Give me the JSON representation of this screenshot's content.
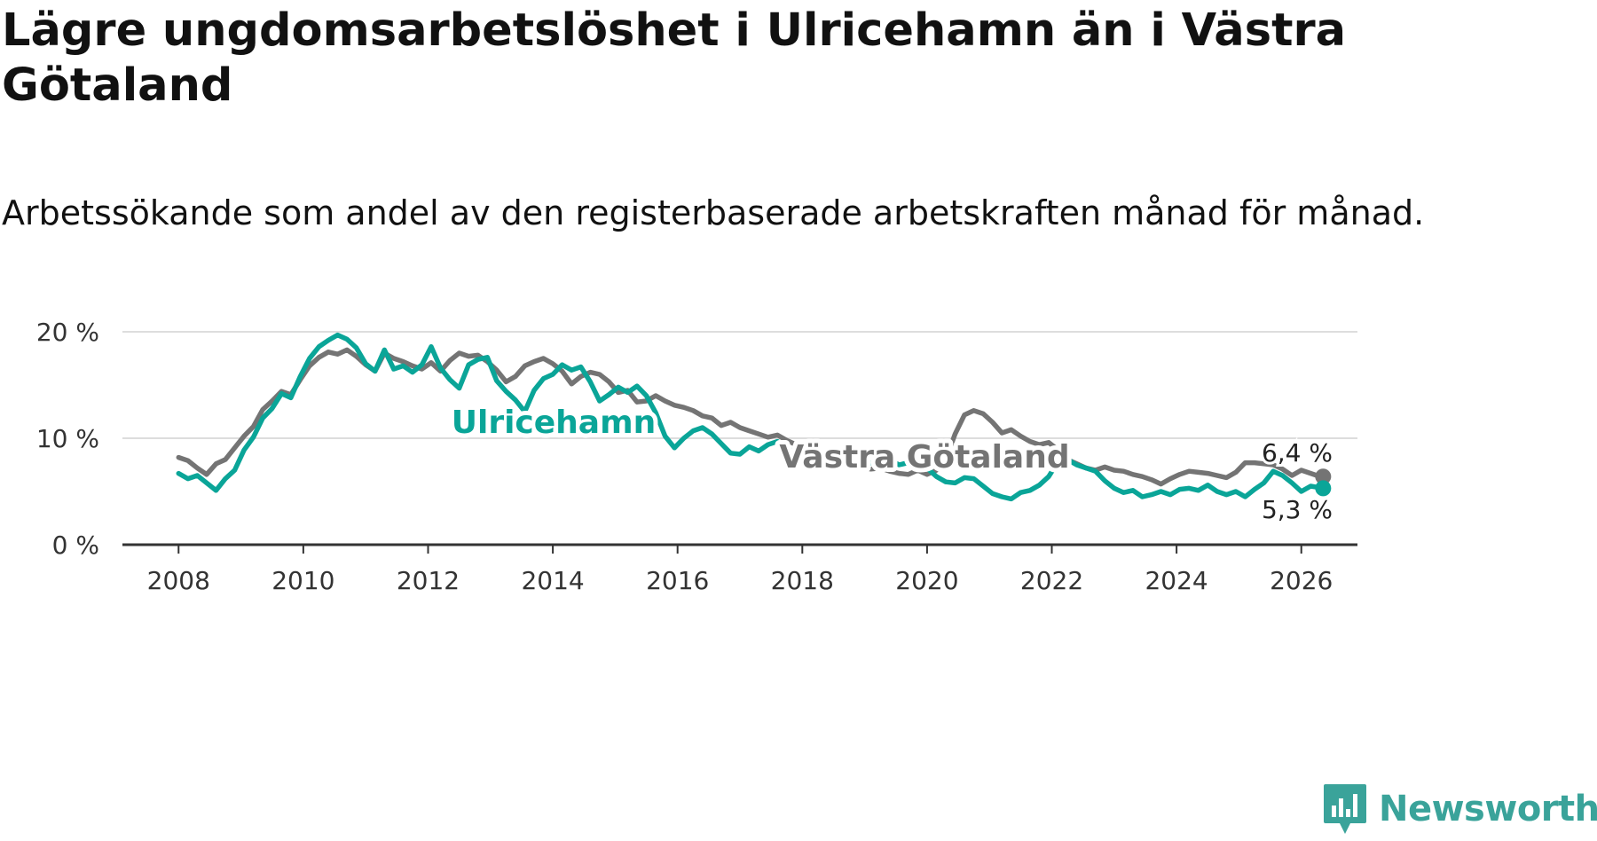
{
  "title": "Lägre ungdomsarbetslöshet i Ulricehamn än i Västra Götaland",
  "subtitle": "Arbetssökande som andel av den registerbaserade arbetskraften månad för månad.",
  "brand": {
    "name": "Newsworthy",
    "color": "#3aa39a"
  },
  "chart_data": {
    "type": "line",
    "title": "Lägre ungdomsarbetslöshet i Ulricehamn än i Västra Götaland",
    "xlabel": "",
    "ylabel": "",
    "xlim": [
      2007.1,
      2026.9
    ],
    "ylim": [
      0,
      20
    ],
    "grid": true,
    "x_ticks": [
      2008,
      2010,
      2012,
      2014,
      2016,
      2018,
      2020,
      2022,
      2024,
      2026
    ],
    "x_tick_labels": [
      "2008",
      "2010",
      "2012",
      "2014",
      "2016",
      "2018",
      "2020",
      "2022",
      "2024",
      "2026"
    ],
    "y_ticks": [
      0,
      10,
      20
    ],
    "y_tick_labels": [
      "0 %",
      "10 %",
      "20 %"
    ],
    "series": [
      {
        "name": "Västra Götaland",
        "color": "#747474",
        "end_label": "6,4 %",
        "points": [
          [
            2008.0,
            8.2
          ],
          [
            2008.15,
            7.9
          ],
          [
            2008.3,
            7.2
          ],
          [
            2008.45,
            6.6
          ],
          [
            2008.6,
            7.6
          ],
          [
            2008.75,
            8.0
          ],
          [
            2008.9,
            9.1
          ],
          [
            2009.05,
            10.2
          ],
          [
            2009.2,
            11.1
          ],
          [
            2009.35,
            12.7
          ],
          [
            2009.5,
            13.5
          ],
          [
            2009.65,
            14.4
          ],
          [
            2009.8,
            14.1
          ],
          [
            2009.95,
            15.5
          ],
          [
            2010.1,
            16.8
          ],
          [
            2010.25,
            17.6
          ],
          [
            2010.4,
            18.1
          ],
          [
            2010.55,
            17.9
          ],
          [
            2010.7,
            18.3
          ],
          [
            2010.85,
            17.7
          ],
          [
            2011.0,
            16.9
          ],
          [
            2011.15,
            16.3
          ],
          [
            2011.3,
            18.0
          ],
          [
            2011.45,
            17.5
          ],
          [
            2011.6,
            17.2
          ],
          [
            2011.75,
            16.8
          ],
          [
            2011.9,
            16.5
          ],
          [
            2012.05,
            17.1
          ],
          [
            2012.2,
            16.3
          ],
          [
            2012.35,
            17.3
          ],
          [
            2012.5,
            18.0
          ],
          [
            2012.65,
            17.7
          ],
          [
            2012.8,
            17.8
          ],
          [
            2012.95,
            17.2
          ],
          [
            2013.1,
            16.4
          ],
          [
            2013.25,
            15.3
          ],
          [
            2013.4,
            15.8
          ],
          [
            2013.55,
            16.8
          ],
          [
            2013.7,
            17.2
          ],
          [
            2013.85,
            17.5
          ],
          [
            2014.0,
            17.0
          ],
          [
            2014.15,
            16.3
          ],
          [
            2014.3,
            15.1
          ],
          [
            2014.45,
            15.8
          ],
          [
            2014.6,
            16.2
          ],
          [
            2014.75,
            16.0
          ],
          [
            2014.9,
            15.3
          ],
          [
            2015.05,
            14.3
          ],
          [
            2015.2,
            14.5
          ],
          [
            2015.35,
            13.4
          ],
          [
            2015.5,
            13.5
          ],
          [
            2015.65,
            14.0
          ],
          [
            2015.8,
            13.5
          ],
          [
            2015.95,
            13.1
          ],
          [
            2016.1,
            12.9
          ],
          [
            2016.25,
            12.6
          ],
          [
            2016.4,
            12.1
          ],
          [
            2016.55,
            11.9
          ],
          [
            2016.7,
            11.2
          ],
          [
            2016.85,
            11.5
          ],
          [
            2017.0,
            11.0
          ],
          [
            2017.15,
            10.7
          ],
          [
            2017.3,
            10.4
          ],
          [
            2017.45,
            10.1
          ],
          [
            2017.6,
            10.3
          ],
          [
            2017.75,
            9.8
          ],
          [
            2017.9,
            9.4
          ],
          [
            2018.05,
            8.9
          ],
          [
            2018.2,
            8.3
          ],
          [
            2018.35,
            8.0
          ],
          [
            2018.5,
            8.3
          ],
          [
            2018.65,
            7.9
          ],
          [
            2018.8,
            7.5
          ],
          [
            2018.95,
            7.3
          ],
          [
            2019.1,
            7.1
          ],
          [
            2019.25,
            7.2
          ],
          [
            2019.4,
            6.9
          ],
          [
            2019.55,
            6.7
          ],
          [
            2019.7,
            6.6
          ],
          [
            2019.85,
            7.0
          ],
          [
            2020.0,
            6.6
          ],
          [
            2020.15,
            7.0
          ],
          [
            2020.3,
            8.0
          ],
          [
            2020.45,
            10.4
          ],
          [
            2020.6,
            12.2
          ],
          [
            2020.75,
            12.6
          ],
          [
            2020.9,
            12.3
          ],
          [
            2021.05,
            11.5
          ],
          [
            2021.2,
            10.5
          ],
          [
            2021.35,
            10.8
          ],
          [
            2021.5,
            10.2
          ],
          [
            2021.65,
            9.7
          ],
          [
            2021.8,
            9.4
          ],
          [
            2021.95,
            9.6
          ],
          [
            2022.1,
            8.9
          ],
          [
            2022.25,
            8.0
          ],
          [
            2022.4,
            7.6
          ],
          [
            2022.55,
            7.2
          ],
          [
            2022.7,
            7.0
          ],
          [
            2022.85,
            7.3
          ],
          [
            2023.0,
            7.0
          ],
          [
            2023.15,
            6.9
          ],
          [
            2023.3,
            6.6
          ],
          [
            2023.45,
            6.4
          ],
          [
            2023.6,
            6.1
          ],
          [
            2023.75,
            5.7
          ],
          [
            2023.9,
            6.2
          ],
          [
            2024.05,
            6.6
          ],
          [
            2024.2,
            6.9
          ],
          [
            2024.35,
            6.8
          ],
          [
            2024.5,
            6.7
          ],
          [
            2024.65,
            6.5
          ],
          [
            2024.8,
            6.3
          ],
          [
            2024.95,
            6.8
          ],
          [
            2025.1,
            7.7
          ],
          [
            2025.25,
            7.7
          ],
          [
            2025.4,
            7.6
          ],
          [
            2025.55,
            7.5
          ],
          [
            2025.7,
            7.1
          ],
          [
            2025.85,
            6.5
          ],
          [
            2026.0,
            7.0
          ],
          [
            2026.15,
            6.7
          ],
          [
            2026.25,
            6.5
          ],
          [
            2026.35,
            6.4
          ]
        ]
      },
      {
        "name": "Ulricehamn",
        "color": "#0aa598",
        "end_label": "5,3 %",
        "points": [
          [
            2008.0,
            6.7
          ],
          [
            2008.15,
            6.2
          ],
          [
            2008.3,
            6.5
          ],
          [
            2008.45,
            5.8
          ],
          [
            2008.6,
            5.1
          ],
          [
            2008.75,
            6.2
          ],
          [
            2008.9,
            7.0
          ],
          [
            2009.05,
            8.9
          ],
          [
            2009.2,
            10.1
          ],
          [
            2009.35,
            11.9
          ],
          [
            2009.5,
            12.8
          ],
          [
            2009.65,
            14.2
          ],
          [
            2009.8,
            13.8
          ],
          [
            2009.95,
            15.8
          ],
          [
            2010.1,
            17.5
          ],
          [
            2010.25,
            18.6
          ],
          [
            2010.4,
            19.2
          ],
          [
            2010.55,
            19.7
          ],
          [
            2010.7,
            19.3
          ],
          [
            2010.85,
            18.5
          ],
          [
            2011.0,
            17.0
          ],
          [
            2011.15,
            16.3
          ],
          [
            2011.3,
            18.3
          ],
          [
            2011.45,
            16.5
          ],
          [
            2011.6,
            16.8
          ],
          [
            2011.75,
            16.2
          ],
          [
            2011.9,
            16.9
          ],
          [
            2012.05,
            18.6
          ],
          [
            2012.2,
            16.6
          ],
          [
            2012.35,
            15.5
          ],
          [
            2012.5,
            14.7
          ],
          [
            2012.65,
            16.9
          ],
          [
            2012.8,
            17.4
          ],
          [
            2012.95,
            17.6
          ],
          [
            2013.1,
            15.4
          ],
          [
            2013.25,
            14.4
          ],
          [
            2013.4,
            13.6
          ],
          [
            2013.55,
            12.5
          ],
          [
            2013.7,
            14.5
          ],
          [
            2013.85,
            15.6
          ],
          [
            2014.0,
            16.0
          ],
          [
            2014.15,
            16.9
          ],
          [
            2014.3,
            16.4
          ],
          [
            2014.45,
            16.7
          ],
          [
            2014.6,
            15.3
          ],
          [
            2014.75,
            13.5
          ],
          [
            2014.9,
            14.1
          ],
          [
            2015.05,
            14.8
          ],
          [
            2015.2,
            14.3
          ],
          [
            2015.35,
            14.9
          ],
          [
            2015.5,
            14.0
          ],
          [
            2015.65,
            12.4
          ],
          [
            2015.8,
            10.2
          ],
          [
            2015.95,
            9.1
          ],
          [
            2016.1,
            10.0
          ],
          [
            2016.25,
            10.7
          ],
          [
            2016.4,
            11.0
          ],
          [
            2016.55,
            10.4
          ],
          [
            2016.7,
            9.5
          ],
          [
            2016.85,
            8.6
          ],
          [
            2017.0,
            8.5
          ],
          [
            2017.15,
            9.2
          ],
          [
            2017.3,
            8.8
          ],
          [
            2017.45,
            9.4
          ],
          [
            2017.6,
            9.7
          ],
          [
            2017.75,
            9.2
          ],
          [
            2017.9,
            8.4
          ],
          [
            2018.05,
            8.1
          ],
          [
            2018.2,
            8.3
          ],
          [
            2018.35,
            8.0
          ],
          [
            2018.5,
            7.4
          ],
          [
            2018.65,
            7.9
          ],
          [
            2018.8,
            7.3
          ],
          [
            2018.95,
            7.8
          ],
          [
            2019.1,
            7.7
          ],
          [
            2019.25,
            7.3
          ],
          [
            2019.4,
            8.0
          ],
          [
            2019.55,
            7.5
          ],
          [
            2019.7,
            7.7
          ],
          [
            2019.85,
            7.4
          ],
          [
            2020.0,
            7.2
          ],
          [
            2020.15,
            6.4
          ],
          [
            2020.3,
            5.9
          ],
          [
            2020.45,
            5.8
          ],
          [
            2020.6,
            6.3
          ],
          [
            2020.75,
            6.2
          ],
          [
            2020.9,
            5.5
          ],
          [
            2021.05,
            4.8
          ],
          [
            2021.2,
            4.5
          ],
          [
            2021.35,
            4.3
          ],
          [
            2021.5,
            4.9
          ],
          [
            2021.65,
            5.1
          ],
          [
            2021.8,
            5.6
          ],
          [
            2021.95,
            6.4
          ],
          [
            2022.1,
            7.8
          ],
          [
            2022.25,
            8.0
          ],
          [
            2022.4,
            7.5
          ],
          [
            2022.55,
            7.2
          ],
          [
            2022.7,
            6.9
          ],
          [
            2022.85,
            6.0
          ],
          [
            2023.0,
            5.3
          ],
          [
            2023.15,
            4.9
          ],
          [
            2023.3,
            5.1
          ],
          [
            2023.45,
            4.5
          ],
          [
            2023.6,
            4.7
          ],
          [
            2023.75,
            5.0
          ],
          [
            2023.9,
            4.7
          ],
          [
            2024.05,
            5.2
          ],
          [
            2024.2,
            5.3
          ],
          [
            2024.35,
            5.1
          ],
          [
            2024.5,
            5.6
          ],
          [
            2024.65,
            5.0
          ],
          [
            2024.8,
            4.7
          ],
          [
            2024.95,
            5.0
          ],
          [
            2025.1,
            4.5
          ],
          [
            2025.25,
            5.2
          ],
          [
            2025.4,
            5.8
          ],
          [
            2025.55,
            6.9
          ],
          [
            2025.7,
            6.5
          ],
          [
            2025.85,
            5.8
          ],
          [
            2026.0,
            5.0
          ],
          [
            2026.15,
            5.5
          ],
          [
            2026.25,
            5.4
          ],
          [
            2026.35,
            5.3
          ]
        ]
      }
    ]
  }
}
